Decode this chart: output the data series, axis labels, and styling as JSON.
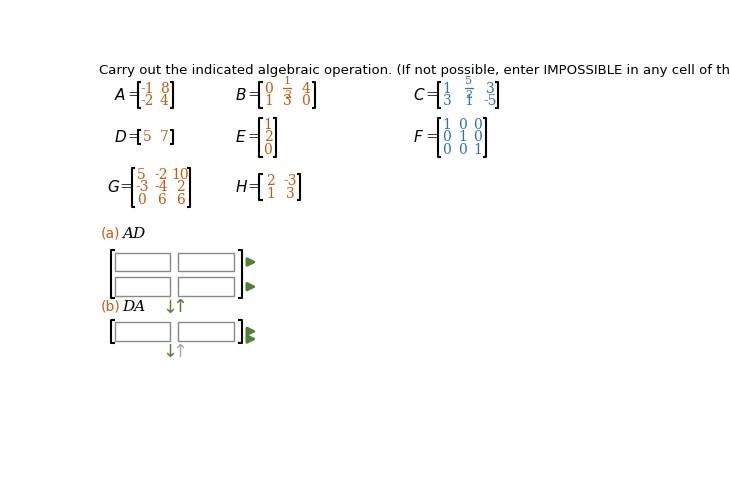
{
  "title": "Carry out the indicated algebraic operation. (If not possible, enter IMPOSSIBLE in any cell of the matrix.)",
  "bg_color": "#ffffff",
  "text_color": "#000000",
  "label_color": "#000000",
  "orange": "#c55a11",
  "blue": "#2e74b5",
  "green": "#548235",
  "gray_green": "#a9a9a9",
  "A_rows": [
    [
      "-1",
      "8"
    ],
    [
      "-2",
      "4"
    ]
  ],
  "B_rows": [
    [
      "0",
      "FRAC_1_2",
      "4"
    ],
    [
      "1",
      "3",
      "0"
    ]
  ],
  "C_rows": [
    [
      "1",
      "FRAC_5_2",
      "3"
    ],
    [
      "3",
      "1",
      "-5"
    ]
  ],
  "D_rows": [
    [
      "5",
      "7"
    ]
  ],
  "E_rows": [
    [
      "1"
    ],
    [
      "2"
    ],
    [
      "0"
    ]
  ],
  "F_rows": [
    [
      "1",
      "0",
      "0"
    ],
    [
      "0",
      "1",
      "0"
    ],
    [
      "0",
      "0",
      "1"
    ]
  ],
  "G_rows": [
    [
      "5",
      "-2",
      "10"
    ],
    [
      "-3",
      "-4",
      "2"
    ],
    [
      "0",
      "6",
      "6"
    ]
  ],
  "H_rows": [
    [
      "2",
      "-3"
    ],
    [
      "1",
      "3"
    ]
  ]
}
